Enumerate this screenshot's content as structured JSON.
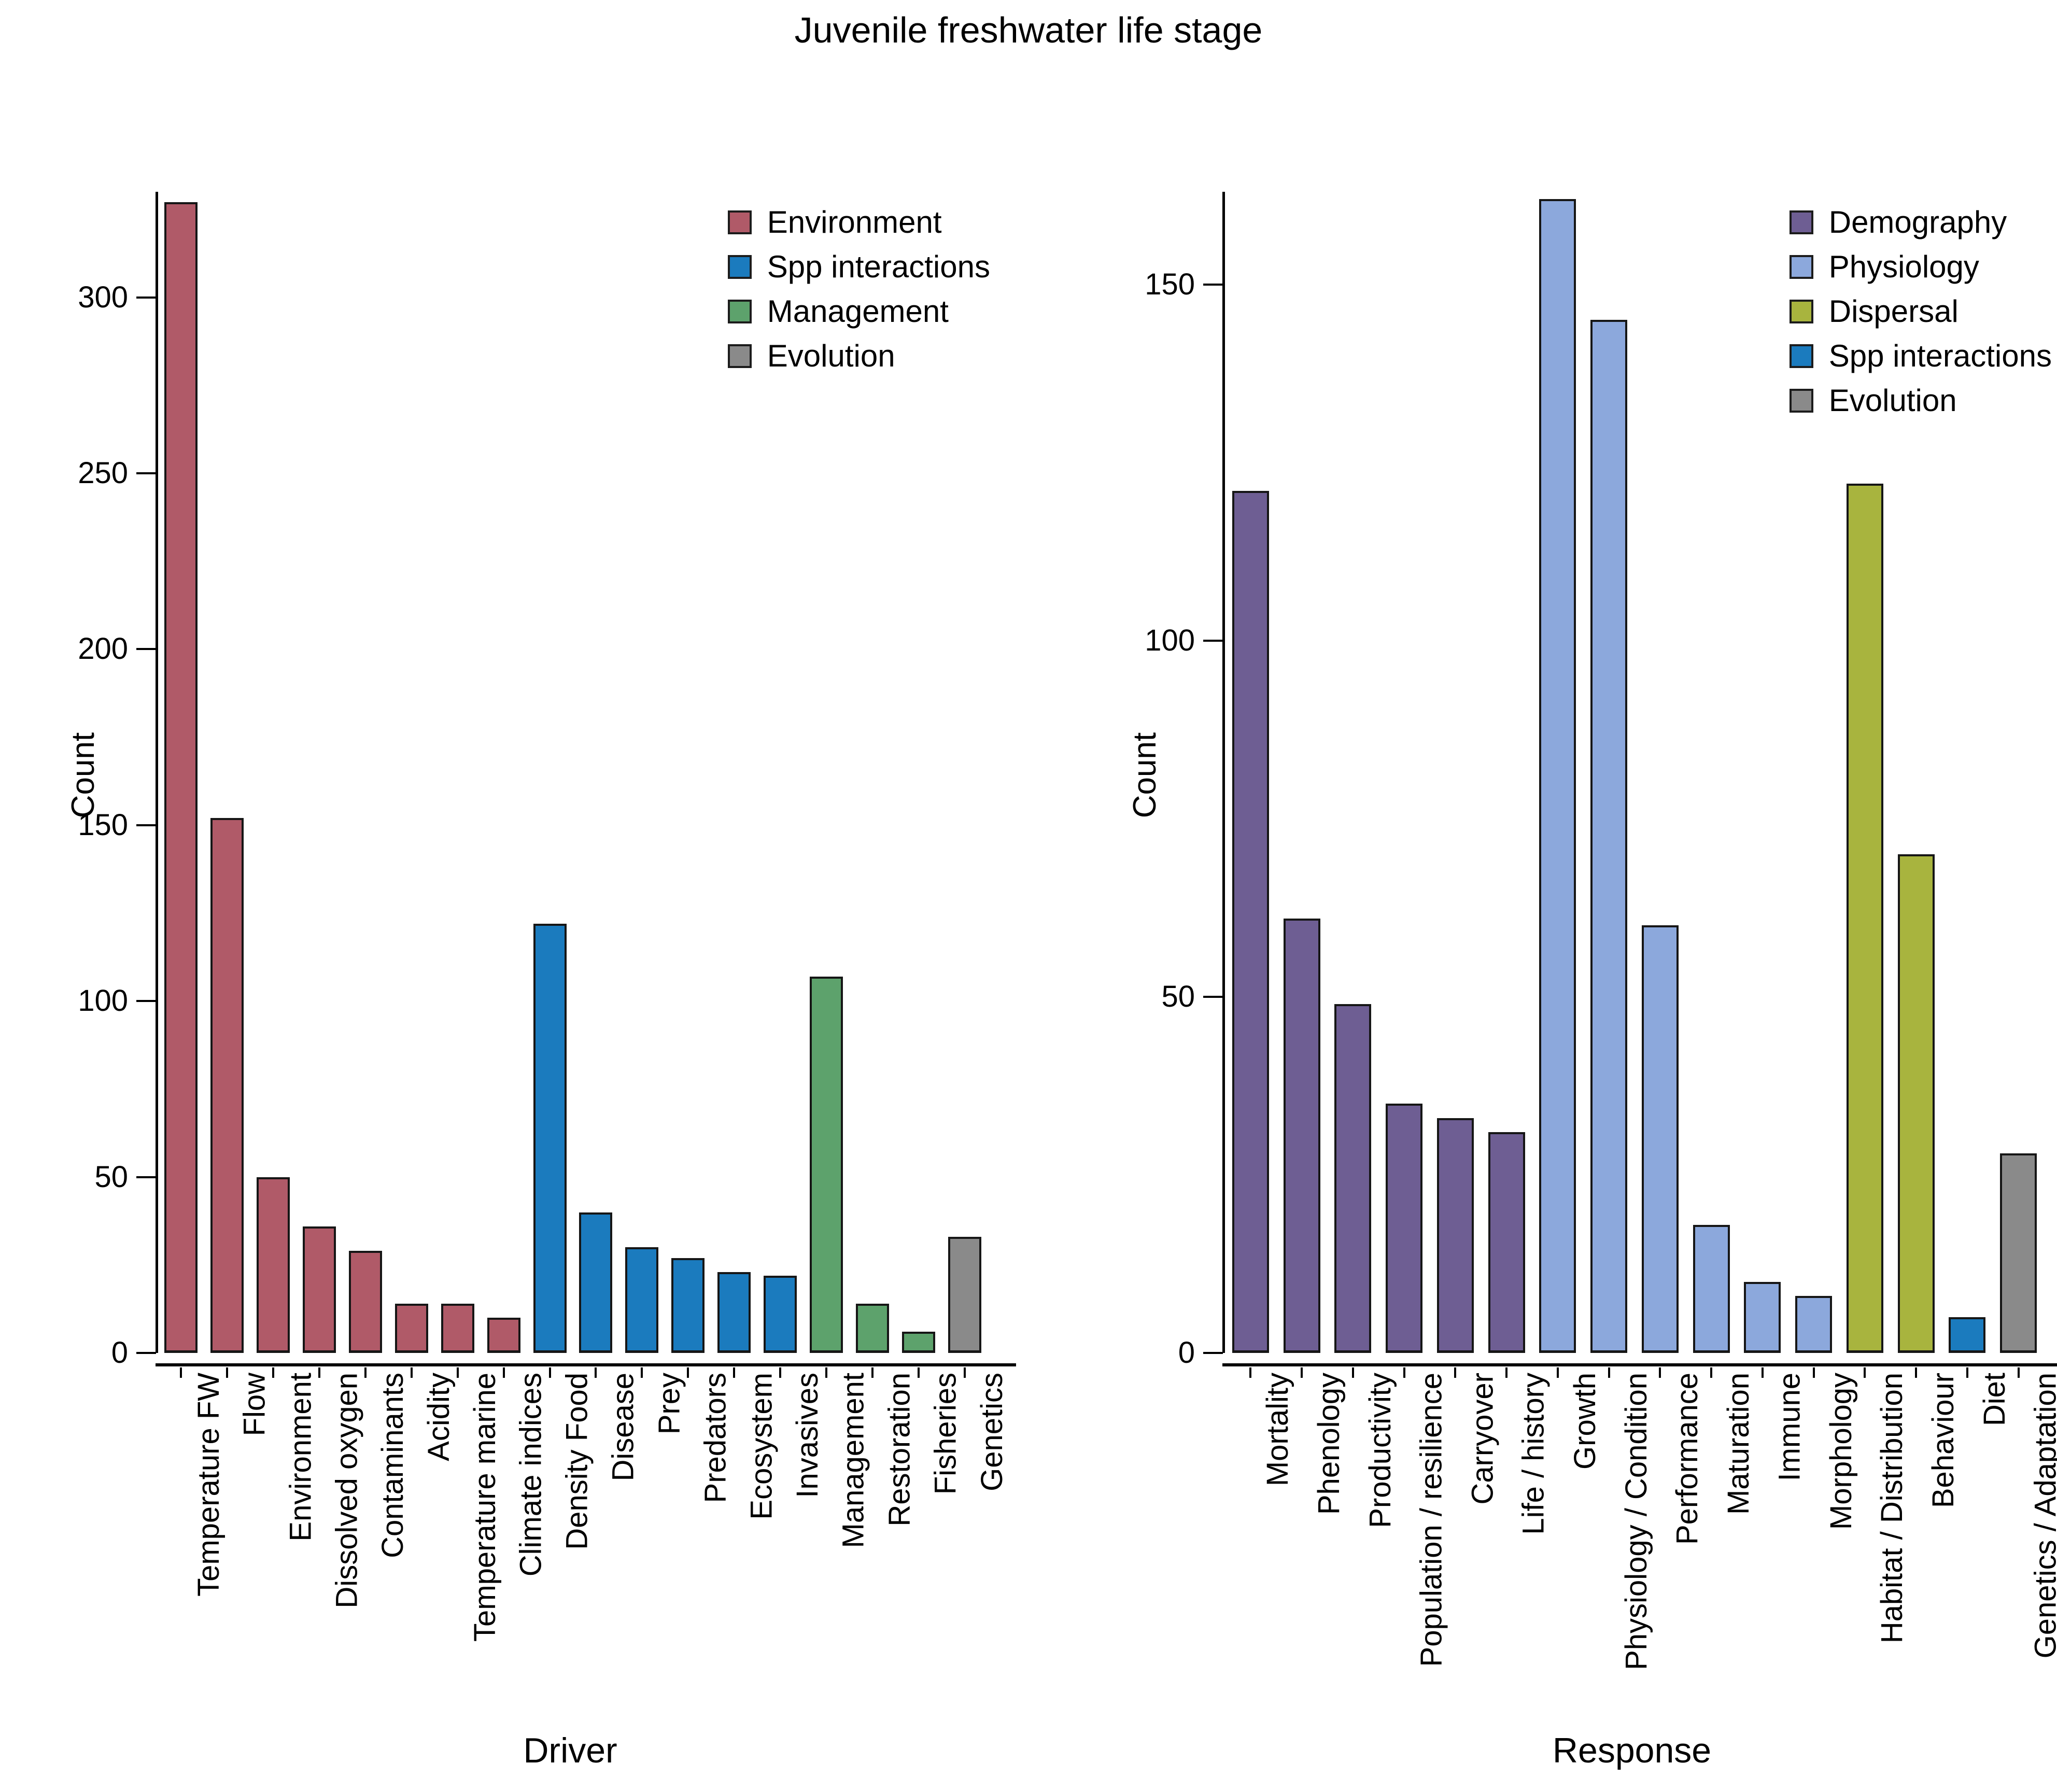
{
  "page": {
    "title": "Juvenile freshwater life stage"
  },
  "chart_data": [
    {
      "type": "bar",
      "title": "Juvenile freshwater life stage",
      "xlabel": "Driver",
      "ylabel": "Count",
      "ylim": [
        0,
        330
      ],
      "yticks": [
        0,
        50,
        100,
        150,
        200,
        250,
        300
      ],
      "grid": false,
      "legend_position": "top-right",
      "categories": [
        "Temperature FW",
        "Flow",
        "Environment",
        "Dissolved oxygen",
        "Contaminants",
        "Acidity",
        "Temperature marine",
        "Climate indices",
        "Density Food",
        "Disease",
        "Prey",
        "Predators",
        "Ecosystem",
        "Invasives",
        "Management",
        "Restoration",
        "Fisheries",
        "Genetics"
      ],
      "values": [
        327,
        152,
        50,
        36,
        29,
        14,
        14,
        10,
        122,
        40,
        30,
        27,
        23,
        22,
        107,
        14,
        6,
        33
      ],
      "groups": [
        "Environment",
        "Environment",
        "Environment",
        "Environment",
        "Environment",
        "Environment",
        "Environment",
        "Environment",
        "Spp interactions",
        "Spp interactions",
        "Spp interactions",
        "Spp interactions",
        "Spp interactions",
        "Spp interactions",
        "Management",
        "Management",
        "Management",
        "Evolution"
      ],
      "group_colors": {
        "Environment": "#B05A68",
        "Spp interactions": "#1B7BBE",
        "Management": "#5DA26C",
        "Evolution": "#8A8A8A"
      },
      "legend": [
        {
          "label": "Environment",
          "color": "#B05A68"
        },
        {
          "label": "Spp interactions",
          "color": "#1B7BBE"
        },
        {
          "label": "Management",
          "color": "#5DA26C"
        },
        {
          "label": "Evolution",
          "color": "#8A8A8A"
        }
      ]
    },
    {
      "type": "bar",
      "title": "Juvenile freshwater life stage",
      "xlabel": "Response",
      "ylabel": "Count",
      "ylim": [
        0,
        163
      ],
      "yticks": [
        0,
        50,
        100,
        150
      ],
      "grid": false,
      "legend_position": "top-right",
      "categories": [
        "Mortality",
        "Phenology",
        "Productivity",
        "Population / resilience",
        "Carryover",
        "Life / history",
        "Growth",
        "Physiology / Condition",
        "Performance",
        "Maturation",
        "Immune",
        "Morphology",
        "Habitat / Distribution",
        "Behaviour",
        "Diet",
        "Genetics / Adaptation"
      ],
      "values": [
        121,
        61,
        49,
        35,
        33,
        31,
        162,
        145,
        60,
        18,
        10,
        8,
        122,
        70,
        5,
        28
      ],
      "groups": [
        "Demography",
        "Demography",
        "Demography",
        "Demography",
        "Demography",
        "Demography",
        "Physiology",
        "Physiology",
        "Physiology",
        "Physiology",
        "Physiology",
        "Physiology",
        "Dispersal",
        "Dispersal",
        "Spp interactions",
        "Evolution"
      ],
      "group_colors": {
        "Demography": "#6E5E93",
        "Physiology": "#8CA8DC",
        "Dispersal": "#A8B43E",
        "Spp interactions": "#1B7BBE",
        "Evolution": "#8A8A8A"
      },
      "legend": [
        {
          "label": "Demography",
          "color": "#6E5E93"
        },
        {
          "label": "Physiology",
          "color": "#8CA8DC"
        },
        {
          "label": "Dispersal",
          "color": "#A8B43E"
        },
        {
          "label": "Spp interactions",
          "color": "#1B7BBE"
        },
        {
          "label": "Evolution",
          "color": "#8A8A8A"
        }
      ]
    }
  ]
}
